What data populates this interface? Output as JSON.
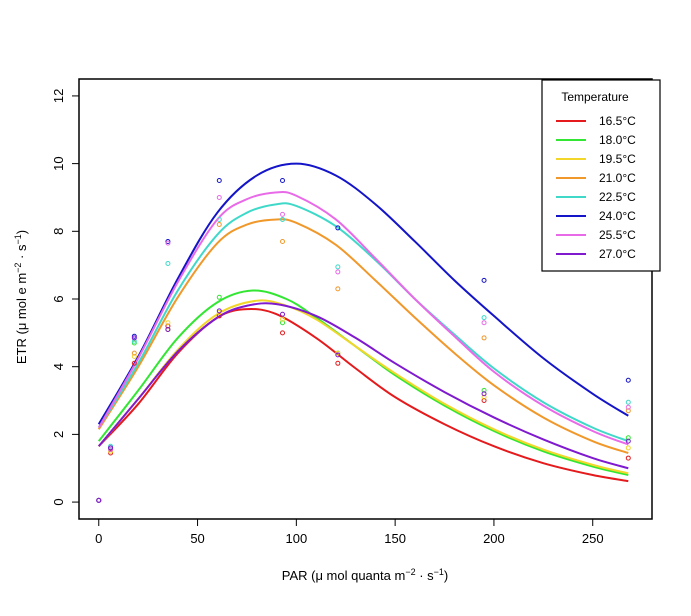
{
  "chart_data": {
    "type": "line",
    "title": "",
    "xlabel": "PAR (μ mol quanta m⁻² · s⁻¹)",
    "ylabel": "ETR (μ mol e m⁻² · s⁻¹)",
    "xlabel_parts": {
      "main": "PAR (μ mol quanta m",
      "sup1": "−2",
      "mid": " · s",
      "sup2": "−1",
      "end": ")"
    },
    "ylabel_parts": {
      "main": "ETR (μ mol e m",
      "sup1": "−2",
      "mid": " · s",
      "sup2": "−1",
      "end": ")"
    },
    "xlim": [
      -10,
      280
    ],
    "ylim": [
      -0.5,
      12.5
    ],
    "xticks": [
      0,
      50,
      100,
      150,
      200,
      250
    ],
    "yticks": [
      0,
      2,
      4,
      6,
      8,
      10,
      12
    ],
    "legend": {
      "title": "Temperature",
      "position": "top-right"
    },
    "x_obs": [
      0,
      6,
      18,
      35,
      61,
      93,
      121,
      195,
      268
    ],
    "series": [
      {
        "name": "16.5°C",
        "color": "#e41a1c",
        "fit": {
          "x": [
            0,
            20,
            40,
            60,
            75,
            90,
            110,
            130,
            150,
            175,
            200,
            225,
            250,
            268
          ],
          "y": [
            1.65,
            2.9,
            4.4,
            5.45,
            5.7,
            5.55,
            4.85,
            3.95,
            3.1,
            2.3,
            1.65,
            1.15,
            0.8,
            0.62
          ]
        },
        "points": [
          0.05,
          1.45,
          4.1,
          5.2,
          5.5,
          5.0,
          4.1,
          3.0,
          1.3
        ]
      },
      {
        "name": "18.0°C",
        "color": "#33e633",
        "fit": {
          "x": [
            0,
            20,
            40,
            60,
            78,
            95,
            110,
            130,
            150,
            175,
            200,
            225,
            250,
            268
          ],
          "y": [
            1.8,
            3.3,
            4.85,
            5.9,
            6.25,
            6.0,
            5.45,
            4.6,
            3.75,
            2.85,
            2.1,
            1.5,
            1.05,
            0.8
          ]
        },
        "points": [
          0.05,
          1.55,
          4.7,
          5.1,
          6.05,
          5.3,
          4.4,
          3.3,
          1.9
        ]
      },
      {
        "name": "19.5°C",
        "color": "#f2d62a",
        "fit": {
          "x": [
            0,
            20,
            40,
            60,
            80,
            95,
            110,
            130,
            150,
            175,
            200,
            225,
            250,
            268
          ],
          "y": [
            1.65,
            3.05,
            4.5,
            5.55,
            5.95,
            5.8,
            5.4,
            4.6,
            3.8,
            2.9,
            2.15,
            1.55,
            1.1,
            0.85
          ]
        },
        "points": [
          0.05,
          1.5,
          4.3,
          5.3,
          5.6,
          5.4,
          4.4,
          3.1,
          1.6
        ]
      },
      {
        "name": "21.0°C",
        "color": "#f0982a",
        "fit": {
          "x": [
            0,
            20,
            40,
            60,
            75,
            90,
            100,
            120,
            140,
            160,
            180,
            200,
            225,
            250,
            268
          ],
          "y": [
            2.15,
            4.0,
            6.05,
            7.65,
            8.2,
            8.35,
            8.25,
            7.6,
            6.55,
            5.45,
            4.4,
            3.45,
            2.5,
            1.8,
            1.45
          ]
        },
        "points": [
          0.05,
          1.6,
          4.4,
          5.1,
          8.2,
          7.7,
          6.3,
          4.85,
          2.7
        ]
      },
      {
        "name": "22.5°C",
        "color": "#40d9c9",
        "fit": {
          "x": [
            0,
            20,
            40,
            60,
            75,
            90,
            100,
            120,
            140,
            160,
            180,
            200,
            225,
            250,
            268
          ],
          "y": [
            2.2,
            4.1,
            6.25,
            7.9,
            8.55,
            8.8,
            8.75,
            8.15,
            7.15,
            6.0,
            4.95,
            3.95,
            2.95,
            2.2,
            1.8
          ]
        },
        "points": [
          0.05,
          1.65,
          4.75,
          7.05,
          8.35,
          8.35,
          6.95,
          5.45,
          2.95
        ]
      },
      {
        "name": "24.0°C",
        "color": "#1414c8",
        "fit": {
          "x": [
            0,
            20,
            40,
            60,
            80,
            100,
            120,
            140,
            160,
            180,
            200,
            225,
            250,
            268
          ],
          "y": [
            2.3,
            4.3,
            6.6,
            8.55,
            9.65,
            10.0,
            9.65,
            8.8,
            7.7,
            6.55,
            5.5,
            4.25,
            3.2,
            2.55
          ]
        },
        "points": [
          0.05,
          1.6,
          4.9,
          7.7,
          9.5,
          9.5,
          8.1,
          6.55,
          3.6
        ]
      },
      {
        "name": "25.5°C",
        "color": "#e86ae8",
        "fit": {
          "x": [
            0,
            20,
            40,
            60,
            75,
            90,
            100,
            120,
            140,
            160,
            180,
            200,
            225,
            250,
            268
          ],
          "y": [
            2.2,
            4.25,
            6.5,
            8.35,
            8.95,
            9.15,
            9.05,
            8.35,
            7.2,
            6.0,
            4.9,
            3.85,
            2.85,
            2.1,
            1.7
          ]
        },
        "points": [
          0.05,
          1.55,
          4.85,
          7.65,
          9.0,
          8.5,
          6.8,
          5.3,
          2.8
        ]
      },
      {
        "name": "27.0°C",
        "color": "#7f1acf",
        "fit": {
          "x": [
            0,
            20,
            40,
            60,
            75,
            90,
            110,
            130,
            150,
            175,
            200,
            225,
            250,
            268
          ],
          "y": [
            1.65,
            3.05,
            4.45,
            5.45,
            5.8,
            5.85,
            5.5,
            4.85,
            4.1,
            3.25,
            2.5,
            1.85,
            1.3,
            1.0
          ]
        },
        "points": [
          0.05,
          1.6,
          4.85,
          5.1,
          5.65,
          5.55,
          4.35,
          3.2,
          1.8
        ]
      }
    ]
  }
}
